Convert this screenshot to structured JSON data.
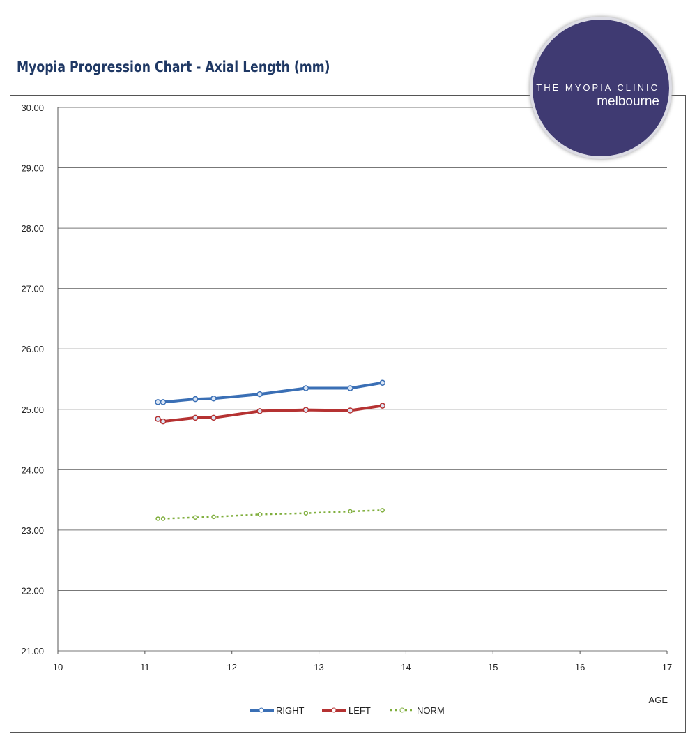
{
  "chart_data": {
    "type": "line",
    "title": "Myopia Progression Chart - Axial Length (mm)",
    "xlabel": "AGE",
    "ylabel": "",
    "xlim": [
      10,
      17
    ],
    "ylim": [
      21,
      30
    ],
    "x_ticks": [
      "10",
      "11",
      "12",
      "13",
      "14",
      "15",
      "16",
      "17"
    ],
    "y_ticks": [
      "21.00",
      "22.00",
      "23.00",
      "24.00",
      "25.00",
      "26.00",
      "27.00",
      "28.00",
      "29.00",
      "30.00"
    ],
    "grid": "horizontal",
    "legend_position": "bottom",
    "series": [
      {
        "name": "RIGHT",
        "color": "#3a6fb5",
        "style": "solid",
        "x": [
          11.15,
          11.21,
          11.58,
          11.79,
          12.32,
          12.85,
          13.36,
          13.73
        ],
        "y": [
          25.12,
          25.12,
          25.17,
          25.18,
          25.25,
          25.35,
          25.35,
          25.44
        ]
      },
      {
        "name": "LEFT",
        "color": "#b53232",
        "style": "solid",
        "x": [
          11.15,
          11.21,
          11.58,
          11.79,
          12.32,
          12.85,
          13.36,
          13.73
        ],
        "y": [
          24.84,
          24.8,
          24.86,
          24.86,
          24.97,
          24.99,
          24.98,
          25.06
        ]
      },
      {
        "name": "NORM",
        "color": "#7fae3c",
        "style": "dotted",
        "x": [
          11.15,
          11.21,
          11.58,
          11.79,
          12.32,
          12.85,
          13.36,
          13.73
        ],
        "y": [
          23.19,
          23.19,
          23.21,
          23.22,
          23.26,
          23.28,
          23.31,
          23.33
        ]
      }
    ]
  },
  "logo": {
    "line1": "THE MYOPIA CLINIC",
    "line2": "melbourne",
    "color": "#3f3a72"
  }
}
